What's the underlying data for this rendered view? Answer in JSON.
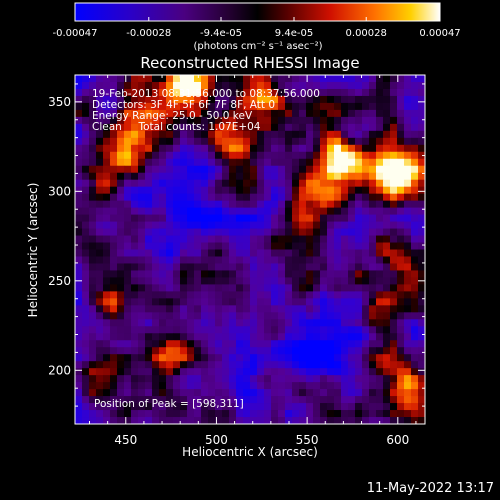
{
  "chart_data": {
    "type": "heatmap",
    "title": "Reconstructed RHESSI Image",
    "xlabel": "Heliocentric X (arcsec)",
    "ylabel": "Heliocentric Y (arcsec)",
    "xlim": [
      422,
      615
    ],
    "ylim": [
      170,
      365
    ],
    "xticks": [
      450,
      500,
      550,
      600
    ],
    "yticks": [
      200,
      250,
      300,
      350
    ],
    "colorbar": {
      "range": [
        -0.00047,
        0.00047
      ],
      "ticks": [
        -0.00047,
        -0.00028,
        -9.4e-05,
        9.4e-05,
        0.00028,
        0.00047
      ],
      "tick_labels": [
        "-0.00047",
        "-0.00028",
        "-9.4e-05",
        "9.4e-05",
        "0.00028",
        "0.00047"
      ],
      "unit_label": "(photons cm⁻² s⁻¹ asec⁻²)"
    },
    "annotations": [
      "19-Feb-2013 08:31:56.000 to 08:37:56.000",
      "Detectors: 3F 4F 5F 6F 7F 8F, Att 0",
      "Energy Range: 25.0 - 50.0 keV",
      "Clean     Total counts: 1.07E+04"
    ],
    "peak_label": "Position of Peak = [598,311]",
    "peak": [
      598,
      311
    ],
    "colors": {
      "axis": "#ffffff",
      "background": "#000000"
    }
  },
  "footer": {
    "timestamp": "11-May-2022 13:17"
  }
}
